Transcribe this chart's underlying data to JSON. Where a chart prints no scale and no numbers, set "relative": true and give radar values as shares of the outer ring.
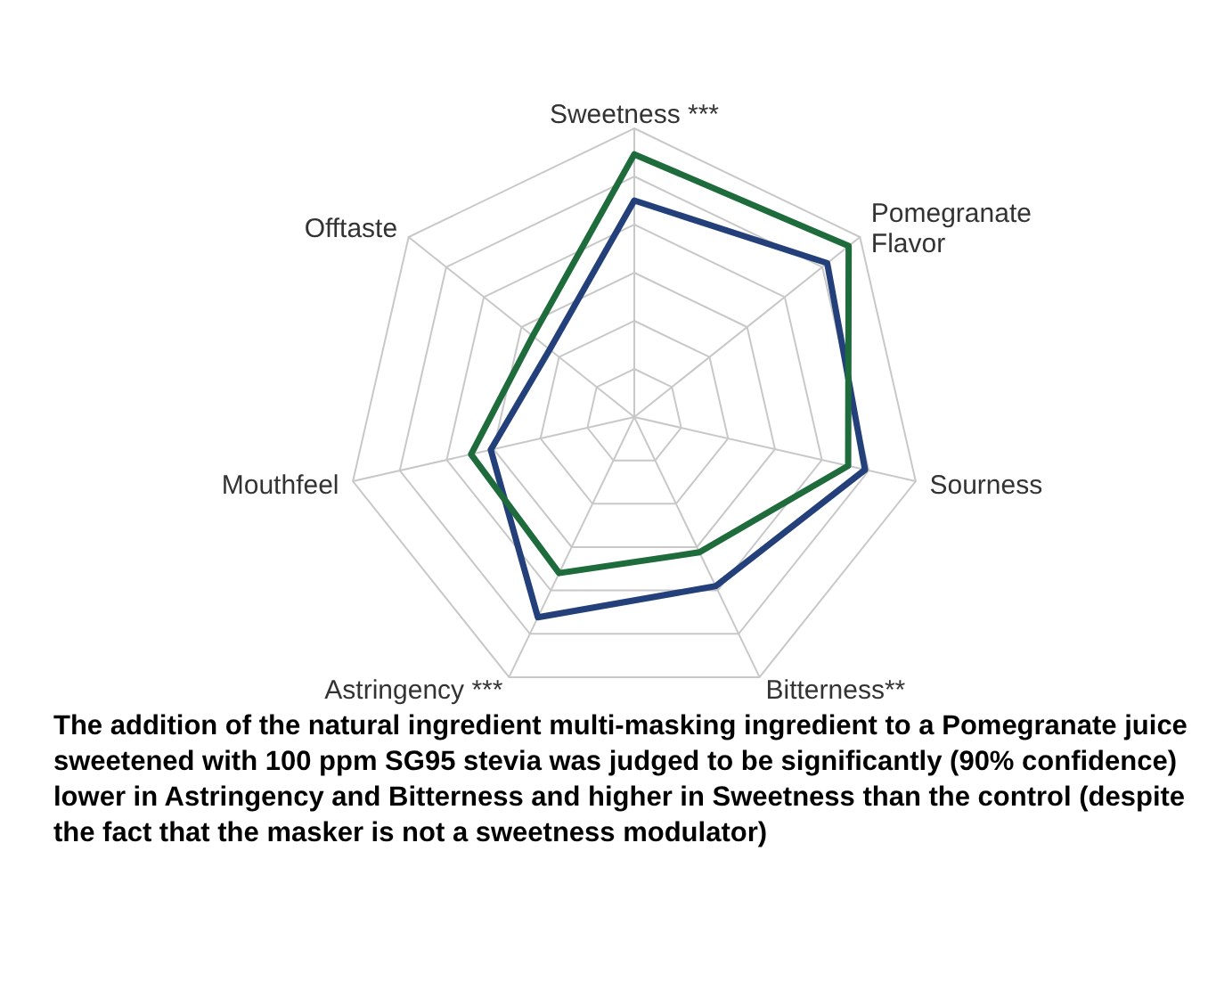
{
  "chart_data": {
    "type": "radar",
    "relative": true,
    "categories": [
      "Sweetness ***",
      "Pomegranate Flavor",
      "Sourness",
      "Bitterness**",
      "Astringency ***",
      "Mouthfeel",
      "Offtaste"
    ],
    "series": [
      {
        "color": "#23407a",
        "values": [
          0.75,
          0.855,
          0.82,
          0.65,
          0.77,
          0.51,
          0.375
        ]
      },
      {
        "color": "#1e6b3c",
        "values": [
          0.91,
          0.95,
          0.76,
          0.52,
          0.6,
          0.58,
          0.45
        ]
      }
    ],
    "grid": true,
    "legend": false,
    "marker": "none",
    "annotations": [
      "The addition of the natural ingredient multi-masking ingredient to a Pomegranate juice sweetened with 100 ppm SG95 stevia was judged to be significantly (90% confidence) lower in Astringency and Bitterness and higher in Sweetness than the control (despite the fact that the masker is not a sweetness modulator)"
    ]
  }
}
